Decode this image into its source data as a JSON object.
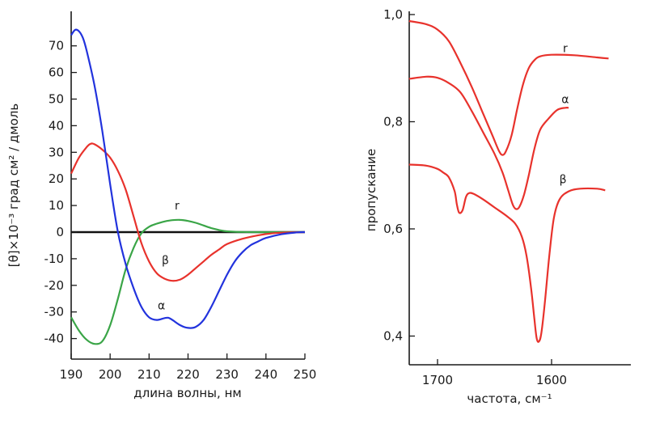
{
  "chart_data": [
    {
      "type": "line",
      "xlabel": "длина волны, нм",
      "ylabel": "[θ]×10⁻³ град см² / дмоль",
      "xlim": [
        190,
        250
      ],
      "ylim": [
        -45,
        78
      ],
      "x_ticks": [
        190,
        200,
        210,
        220,
        230,
        240,
        250
      ],
      "y_ticks": [
        -40,
        -30,
        -20,
        -10,
        0,
        10,
        20,
        30,
        40,
        50,
        60,
        70
      ],
      "zero_line": true,
      "grid": false,
      "series": [
        {
          "name": "r",
          "color": "#3aa547",
          "points": [
            [
              190,
              -32
            ],
            [
              192,
              -37
            ],
            [
              194,
              -40.5
            ],
            [
              196,
              -42
            ],
            [
              198,
              -41
            ],
            [
              200,
              -35
            ],
            [
              202,
              -25
            ],
            [
              204,
              -14
            ],
            [
              206,
              -6
            ],
            [
              208,
              -0.5
            ],
            [
              210,
              2
            ],
            [
              212,
              3.2
            ],
            [
              214,
              4
            ],
            [
              216,
              4.5
            ],
            [
              218,
              4.6
            ],
            [
              220,
              4.2
            ],
            [
              222,
              3.5
            ],
            [
              224,
              2.5
            ],
            [
              226,
              1.5
            ],
            [
              228,
              0.8
            ],
            [
              230,
              0.3
            ],
            [
              234,
              0.05
            ],
            [
              240,
              0
            ],
            [
              250,
              0
            ]
          ]
        },
        {
          "name": "β",
          "color": "#e8322c",
          "points": [
            [
              190,
              22
            ],
            [
              192,
              28
            ],
            [
              194,
              32
            ],
            [
              195,
              33.2
            ],
            [
              196,
              33
            ],
            [
              198,
              31
            ],
            [
              200,
              28
            ],
            [
              202,
              23
            ],
            [
              204,
              16
            ],
            [
              206,
              6
            ],
            [
              208,
              -4
            ],
            [
              210,
              -11
            ],
            [
              212,
              -15.5
            ],
            [
              214,
              -17.5
            ],
            [
              216,
              -18.3
            ],
            [
              218,
              -17.8
            ],
            [
              220,
              -16
            ],
            [
              222,
              -13.5
            ],
            [
              224,
              -11
            ],
            [
              226,
              -8.5
            ],
            [
              228,
              -6.5
            ],
            [
              230,
              -4.5
            ],
            [
              234,
              -2.5
            ],
            [
              238,
              -1.2
            ],
            [
              242,
              -0.4
            ],
            [
              246,
              -0.1
            ],
            [
              250,
              0
            ]
          ]
        },
        {
          "name": "α",
          "color": "#2233dd",
          "points": [
            [
              190,
              74
            ],
            [
              191,
              76
            ],
            [
              192,
              75.5
            ],
            [
              193,
              73
            ],
            [
              194,
              68
            ],
            [
              196,
              55
            ],
            [
              198,
              38
            ],
            [
              200,
              18
            ],
            [
              202,
              0
            ],
            [
              204,
              -12
            ],
            [
              206,
              -21
            ],
            [
              208,
              -28
            ],
            [
              210,
              -32
            ],
            [
              212,
              -33
            ],
            [
              214,
              -32.3
            ],
            [
              215,
              -32.2
            ],
            [
              216,
              -33
            ],
            [
              218,
              -35
            ],
            [
              220,
              -36
            ],
            [
              222,
              -35.6
            ],
            [
              224,
              -33
            ],
            [
              226,
              -28
            ],
            [
              228,
              -22
            ],
            [
              230,
              -16
            ],
            [
              232,
              -11
            ],
            [
              234,
              -7.5
            ],
            [
              236,
              -5
            ],
            [
              238,
              -3.5
            ],
            [
              240,
              -2.2
            ],
            [
              244,
              -0.8
            ],
            [
              248,
              -0.1
            ],
            [
              250,
              0
            ]
          ]
        }
      ]
    },
    {
      "type": "line",
      "xlabel": "частота, см⁻¹",
      "ylabel": "пропускание",
      "xlim": [
        1725,
        1540
      ],
      "ylim": [
        0.37,
        1.0
      ],
      "x_ticks": [
        1700,
        1600
      ],
      "y_ticks": [
        0.4,
        0.6,
        0.8,
        1.0
      ],
      "y_tick_labels": [
        "0,4",
        "0,6",
        "0,8",
        "1,0"
      ],
      "grid": false,
      "series": [
        {
          "name": "r",
          "color": "#e8322c",
          "points": [
            [
              1725,
              0.988
            ],
            [
              1710,
              0.982
            ],
            [
              1700,
              0.972
            ],
            [
              1690,
              0.95
            ],
            [
              1680,
              0.91
            ],
            [
              1670,
              0.865
            ],
            [
              1660,
              0.815
            ],
            [
              1652,
              0.775
            ],
            [
              1646,
              0.745
            ],
            [
              1643,
              0.738
            ],
            [
              1640,
              0.745
            ],
            [
              1635,
              0.775
            ],
            [
              1630,
              0.825
            ],
            [
              1625,
              0.87
            ],
            [
              1620,
              0.9
            ],
            [
              1615,
              0.915
            ],
            [
              1610,
              0.922
            ],
            [
              1600,
              0.925
            ],
            [
              1580,
              0.924
            ],
            [
              1560,
              0.92
            ],
            [
              1550,
              0.918
            ]
          ]
        },
        {
          "name": "α",
          "color": "#e8322c",
          "points": [
            [
              1725,
              0.88
            ],
            [
              1710,
              0.884
            ],
            [
              1700,
              0.882
            ],
            [
              1690,
              0.872
            ],
            [
              1680,
              0.855
            ],
            [
              1670,
              0.82
            ],
            [
              1660,
              0.78
            ],
            [
              1650,
              0.74
            ],
            [
              1643,
              0.705
            ],
            [
              1638,
              0.672
            ],
            [
              1634,
              0.645
            ],
            [
              1631,
              0.637
            ],
            [
              1628,
              0.642
            ],
            [
              1624,
              0.665
            ],
            [
              1620,
              0.7
            ],
            [
              1615,
              0.75
            ],
            [
              1610,
              0.785
            ],
            [
              1603,
              0.805
            ],
            [
              1595,
              0.822
            ],
            [
              1588,
              0.826
            ],
            [
              1585,
              0.826
            ]
          ]
        },
        {
          "name": "β",
          "color": "#e8322c",
          "points": [
            [
              1725,
              0.72
            ],
            [
              1710,
              0.718
            ],
            [
              1700,
              0.712
            ],
            [
              1695,
              0.705
            ],
            [
              1690,
              0.696
            ],
            [
              1685,
              0.67
            ],
            [
              1683,
              0.645
            ],
            [
              1681,
              0.63
            ],
            [
              1678,
              0.635
            ],
            [
              1675,
              0.66
            ],
            [
              1672,
              0.667
            ],
            [
              1668,
              0.665
            ],
            [
              1660,
              0.655
            ],
            [
              1650,
              0.64
            ],
            [
              1640,
              0.625
            ],
            [
              1632,
              0.61
            ],
            [
              1626,
              0.585
            ],
            [
              1622,
              0.55
            ],
            [
              1618,
              0.49
            ],
            [
              1615,
              0.43
            ],
            [
              1613,
              0.395
            ],
            [
              1611,
              0.39
            ],
            [
              1609,
              0.405
            ],
            [
              1606,
              0.46
            ],
            [
              1602,
              0.55
            ],
            [
              1598,
              0.62
            ],
            [
              1593,
              0.655
            ],
            [
              1585,
              0.67
            ],
            [
              1575,
              0.675
            ],
            [
              1560,
              0.675
            ],
            [
              1553,
              0.672
            ]
          ]
        }
      ]
    }
  ]
}
